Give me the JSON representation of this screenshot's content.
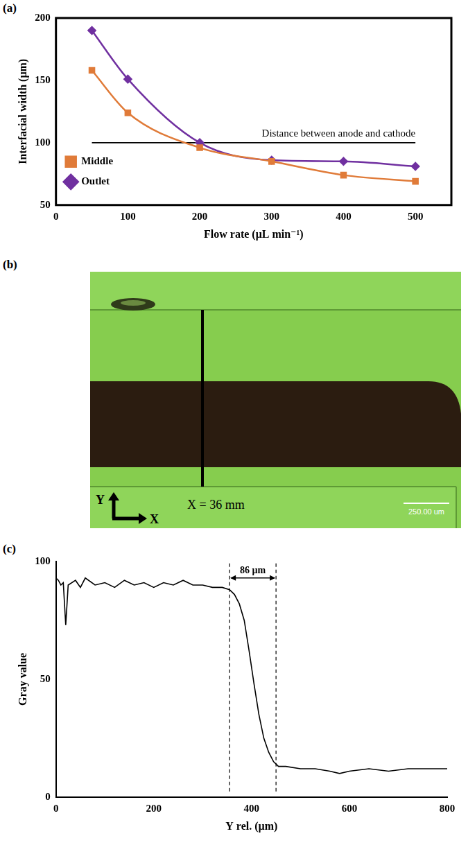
{
  "chart_data": [
    {
      "panel": "(a)",
      "type": "line",
      "x_label": "Flow rate (μL min⁻¹)",
      "y_label": "Interfacial width (μm)",
      "x": [
        50,
        100,
        200,
        300,
        400,
        500
      ],
      "series": [
        {
          "name": "Middle",
          "color": "#e07b39",
          "marker": "square",
          "values": [
            158,
            124,
            96,
            85,
            74,
            69
          ]
        },
        {
          "name": "Outlet",
          "color": "#7030a0",
          "marker": "diamond",
          "values": [
            190,
            151,
            100,
            86,
            85,
            81
          ]
        }
      ],
      "xlim": [
        0,
        550
      ],
      "xticks": [
        0,
        100,
        200,
        300,
        400,
        500
      ],
      "ylim": [
        50,
        200
      ],
      "yticks": [
        50,
        100,
        150,
        200
      ],
      "grid": false,
      "legend": "upper right",
      "annotations": [
        {
          "text": "Distance between anode and cathode",
          "x": [
            50,
            500
          ],
          "y": 100
        }
      ]
    },
    {
      "panel": "(c)",
      "type": "line",
      "x_label": "Y rel. (µm)",
      "y_label": "Gray value",
      "x": [
        0,
        5,
        10,
        15,
        20,
        25,
        40,
        50,
        60,
        80,
        100,
        120,
        140,
        160,
        180,
        200,
        220,
        240,
        260,
        280,
        300,
        320,
        340,
        355,
        365,
        375,
        385,
        395,
        405,
        415,
        425,
        435,
        445,
        455,
        470,
        500,
        530,
        560,
        580,
        600,
        640,
        680,
        720,
        760,
        800
      ],
      "values": [
        93,
        92,
        90,
        91,
        73,
        90,
        92,
        89,
        93,
        90,
        91,
        89,
        92,
        90,
        91,
        89,
        91,
        90,
        92,
        90,
        90,
        89,
        89,
        88,
        86,
        82,
        75,
        62,
        48,
        35,
        25,
        19,
        15,
        13,
        13,
        12,
        12,
        11,
        10,
        11,
        12,
        11,
        12,
        12,
        12
      ],
      "color": "#000000",
      "xlim": [
        0,
        800
      ],
      "xticks": [
        0,
        200,
        400,
        600,
        800
      ],
      "ylim": [
        0,
        100
      ],
      "yticks": [
        0,
        50,
        100
      ],
      "grid": false,
      "annotations": [
        {
          "text": "86 µm",
          "x": [
            355,
            450
          ],
          "y": 93
        }
      ]
    }
  ],
  "image": {
    "panel": "(b)",
    "annotation": "X = 36 mm",
    "axes": [
      "Y",
      "X"
    ],
    "scale_bar": "250.00 um"
  }
}
